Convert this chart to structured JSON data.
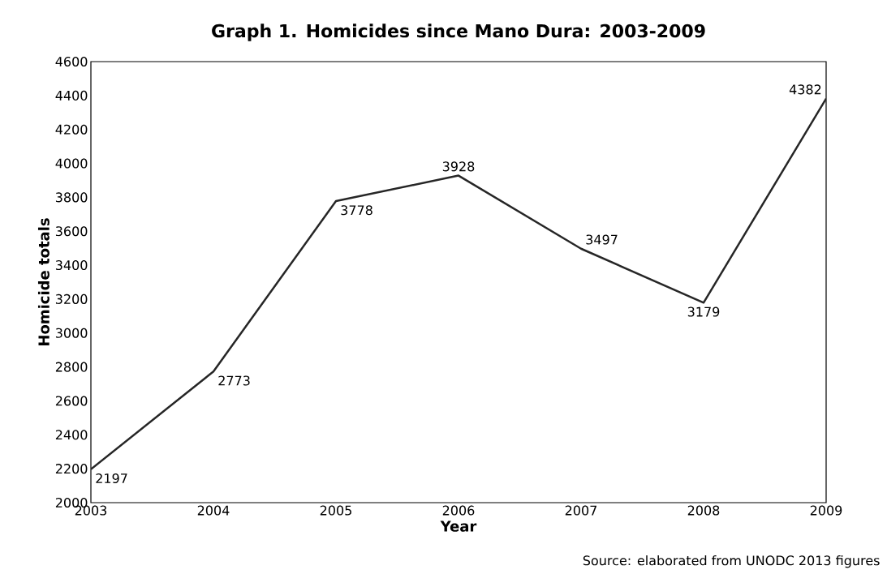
{
  "chart_data": {
    "type": "line",
    "title": "Graph 1.  Homicides since Mano Dura: 2003-2009",
    "xlabel": "Year",
    "ylabel": "Homicide totals",
    "x": [
      2003,
      2004,
      2005,
      2006,
      2007,
      2008,
      2009
    ],
    "values": [
      2197,
      2773,
      3778,
      3928,
      3497,
      3179,
      4382
    ],
    "color": "#262626",
    "xlim": [
      2003,
      2009
    ],
    "xticks": [
      2003,
      2004,
      2005,
      2006,
      2007,
      2008,
      2009
    ],
    "ylim": [
      2000,
      4600
    ],
    "yticks": [
      2000,
      2200,
      2400,
      2600,
      2800,
      3000,
      3200,
      3400,
      3600,
      3800,
      4000,
      4200,
      4400,
      4600
    ],
    "data_labels": true,
    "grid": false,
    "marker": "none",
    "line_style": "solid",
    "annotations": [
      "Source: elaborated from UNODC 2013 figures"
    ]
  }
}
